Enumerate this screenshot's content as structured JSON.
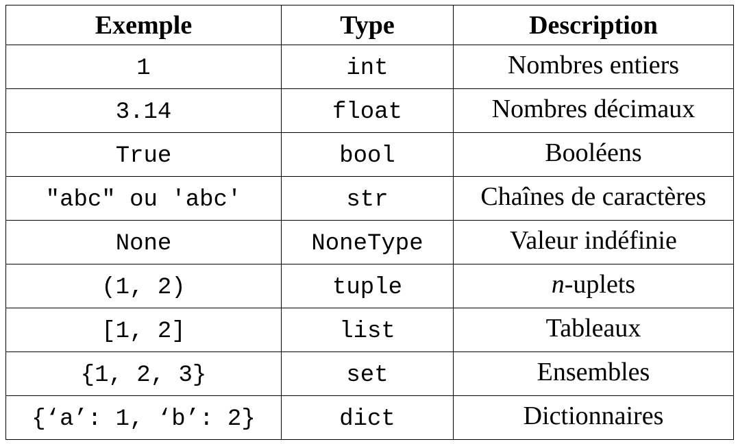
{
  "table": {
    "headers": {
      "example": "Exemple",
      "type": "Type",
      "description": "Description"
    },
    "rows": [
      {
        "example": "1",
        "type": "int",
        "description": "Nombres entiers"
      },
      {
        "example": "3.14",
        "type": "float",
        "description": "Nombres décimaux"
      },
      {
        "example": "True",
        "type": "bool",
        "description": "Booléens"
      },
      {
        "example": "\"abc\" ou 'abc'",
        "type": "str",
        "description": "Chaînes de caractères"
      },
      {
        "example": "None",
        "type": "NoneType",
        "description": "Valeur indéfinie"
      },
      {
        "example": "(1, 2)",
        "type": "tuple",
        "description_italic": "n",
        "description": "-uplets"
      },
      {
        "example": "[1, 2]",
        "type": "list",
        "description": "Tableaux"
      },
      {
        "example": "{1, 2, 3}",
        "type": "set",
        "description": "Ensembles"
      },
      {
        "example": "{‘a’: 1, ‘b’: 2}",
        "type": "dict",
        "description": "Dictionnaires"
      }
    ]
  }
}
